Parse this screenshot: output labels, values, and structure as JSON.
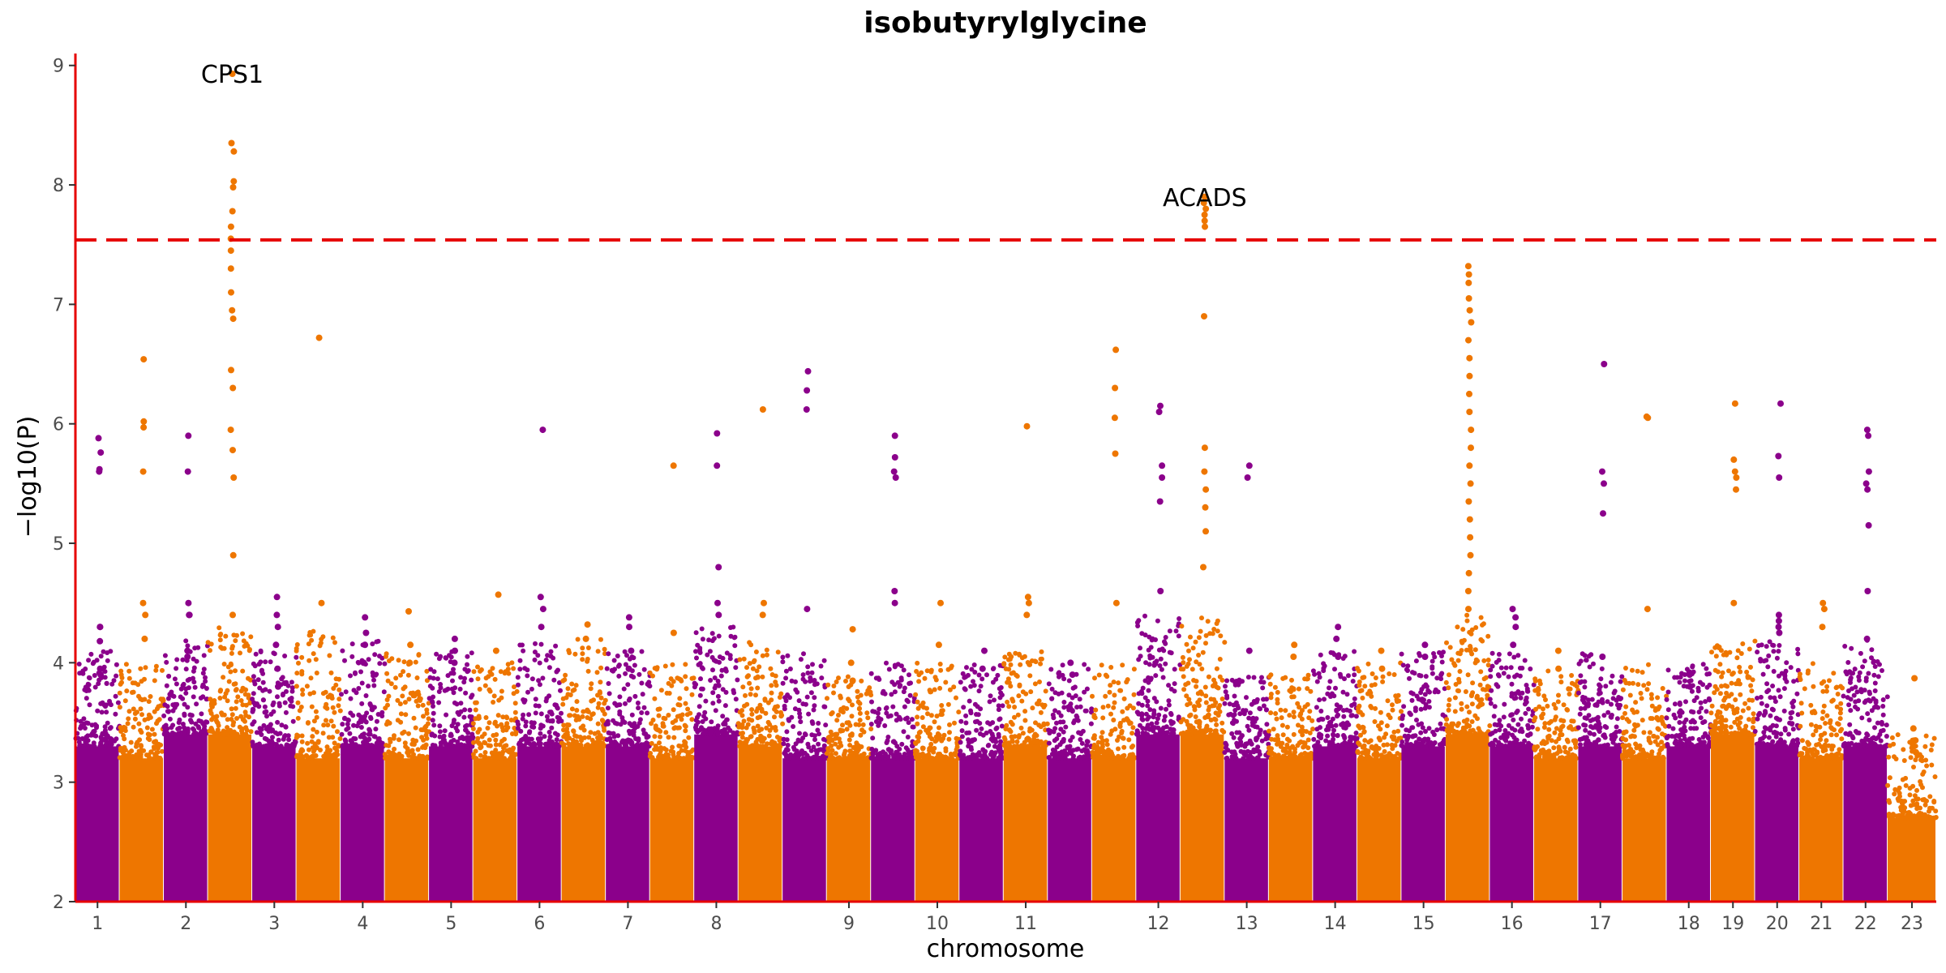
{
  "chart_data": {
    "type": "scatter",
    "subtype": "manhattan",
    "title": "isobutyrylglycine",
    "xlabel": "chromosome",
    "ylabel": "−log10(P)",
    "ylim": [
      2,
      9.1
    ],
    "y_ticks": [
      2,
      3,
      4,
      5,
      6,
      7,
      8,
      9
    ],
    "grid": false,
    "significance_threshold": 7.54,
    "colors": {
      "odd": "#8B008B",
      "even": "#EE7600",
      "axis": "#E60000",
      "threshold": "#E60000"
    },
    "chromosomes": [
      {
        "label": "1",
        "base": 3.3,
        "bg_max": 4.1,
        "hits": [
          5.76,
          5.62,
          4.3,
          3.95,
          5.6,
          5.88,
          4.3,
          4.18,
          3.9
        ]
      },
      {
        "label": "",
        "base": 3.2,
        "bg_max": 4.0,
        "hits": [
          6.54,
          6.02,
          5.97,
          5.6,
          4.5,
          4.4,
          4.2
        ]
      },
      {
        "label": "2",
        "base": 3.4,
        "bg_max": 4.2,
        "hits": [
          4.5,
          4.4,
          5.9,
          5.6,
          4.4,
          4.1,
          4.05
        ]
      },
      {
        "label": "",
        "base": 3.4,
        "bg_max": 4.3,
        "hits": [
          8.93,
          8.35,
          8.28,
          8.03,
          7.98,
          7.78,
          7.65,
          7.55,
          7.45,
          7.3,
          7.1,
          6.95,
          6.88,
          6.45,
          6.3,
          5.95,
          5.78,
          5.55,
          4.9,
          4.4
        ]
      },
      {
        "label": "3",
        "base": 3.3,
        "bg_max": 4.1,
        "hits": [
          4.55,
          4.4,
          4.15,
          3.95,
          4.3,
          3.8
        ]
      },
      {
        "label": "",
        "base": 3.2,
        "bg_max": 4.3,
        "hits": [
          6.72,
          4.5
        ]
      },
      {
        "label": "4",
        "base": 3.3,
        "bg_max": 4.2,
        "hits": [
          4.38,
          4.25,
          4.15,
          4.0
        ]
      },
      {
        "label": "",
        "base": 3.2,
        "bg_max": 4.1,
        "hits": [
          4.43,
          4.15,
          4.0
        ]
      },
      {
        "label": "5",
        "base": 3.3,
        "bg_max": 4.1,
        "hits": [
          4.2,
          4.1,
          4.0
        ]
      },
      {
        "label": "",
        "base": 3.2,
        "bg_max": 4.0,
        "hits": [
          4.57,
          4.1
        ]
      },
      {
        "label": "6",
        "base": 3.3,
        "bg_max": 4.2,
        "hits": [
          5.95,
          4.55,
          4.45,
          4.3
        ]
      },
      {
        "label": "",
        "base": 3.3,
        "bg_max": 4.2,
        "hits": [
          4.32,
          4.2
        ]
      },
      {
        "label": "7",
        "base": 3.3,
        "bg_max": 4.1,
        "hits": [
          4.38,
          4.3,
          4.1,
          3.95
        ]
      },
      {
        "label": "",
        "base": 3.2,
        "bg_max": 4.0,
        "hits": [
          5.65,
          4.25
        ]
      },
      {
        "label": "8",
        "base": 3.4,
        "bg_max": 4.3,
        "hits": [
          5.92,
          5.65,
          4.8,
          4.5,
          4.4
        ]
      },
      {
        "label": "",
        "base": 3.3,
        "bg_max": 4.2,
        "hits": [
          6.12,
          4.5,
          4.4
        ]
      },
      {
        "label": "",
        "base": 3.2,
        "bg_max": 4.1,
        "hits": [
          6.44,
          6.28,
          6.12,
          4.45
        ]
      },
      {
        "label": "9",
        "base": 3.2,
        "bg_max": 3.9,
        "hits": [
          4.28,
          4.0,
          3.85
        ]
      },
      {
        "label": "",
        "base": 3.2,
        "bg_max": 4.0,
        "hits": [
          5.9,
          5.72,
          5.6,
          5.55,
          4.6,
          4.5
        ]
      },
      {
        "label": "10",
        "base": 3.2,
        "bg_max": 4.0,
        "hits": [
          4.5,
          4.15
        ]
      },
      {
        "label": "",
        "base": 3.2,
        "bg_max": 4.0,
        "hits": [
          4.1,
          3.95
        ]
      },
      {
        "label": "11",
        "base": 3.3,
        "bg_max": 4.1,
        "hits": [
          5.98,
          4.55,
          4.5,
          4.4
        ]
      },
      {
        "label": "",
        "base": 3.2,
        "bg_max": 4.0,
        "hits": [
          4.0,
          3.9
        ]
      },
      {
        "label": "",
        "base": 3.2,
        "bg_max": 4.0,
        "hits": [
          6.62,
          6.3,
          6.05,
          5.75,
          4.5
        ]
      },
      {
        "label": "12",
        "base": 3.4,
        "bg_max": 4.4,
        "hits": [
          6.15,
          6.1,
          5.65,
          5.55,
          5.35,
          4.6
        ]
      },
      {
        "label": "",
        "base": 3.4,
        "bg_max": 4.4,
        "hits": [
          7.9,
          7.85,
          7.8,
          7.75,
          7.7,
          7.65,
          6.9,
          5.8,
          5.6,
          5.45,
          5.3,
          5.1,
          4.8
        ]
      },
      {
        "label": "13",
        "base": 3.2,
        "bg_max": 3.9,
        "hits": [
          5.65,
          5.55,
          4.1
        ]
      },
      {
        "label": "",
        "base": 3.2,
        "bg_max": 3.9,
        "hits": [
          4.15,
          4.05
        ]
      },
      {
        "label": "14",
        "base": 3.3,
        "bg_max": 4.1,
        "hits": [
          4.3,
          4.2,
          4.05
        ]
      },
      {
        "label": "",
        "base": 3.2,
        "bg_max": 4.0,
        "hits": [
          4.1,
          3.95
        ]
      },
      {
        "label": "15",
        "base": 3.3,
        "bg_max": 4.1,
        "hits": [
          4.15,
          4.05
        ]
      },
      {
        "label": "",
        "base": 3.4,
        "bg_max": 4.4,
        "hits": [
          7.32,
          7.25,
          7.18,
          7.05,
          6.95,
          6.85,
          6.7,
          6.55,
          6.4,
          6.25,
          6.1,
          5.95,
          5.8,
          5.65,
          5.5,
          5.35,
          5.2,
          5.05,
          4.9,
          4.75,
          4.6,
          4.45
        ]
      },
      {
        "label": "16",
        "base": 3.3,
        "bg_max": 4.1,
        "hits": [
          4.45,
          4.38,
          4.3,
          4.15
        ]
      },
      {
        "label": "",
        "base": 3.2,
        "bg_max": 4.0,
        "hits": [
          4.1,
          3.95
        ]
      },
      {
        "label": "17",
        "base": 3.3,
        "bg_max": 4.1,
        "hits": [
          6.5,
          5.6,
          5.5,
          5.25,
          4.05
        ]
      },
      {
        "label": "",
        "base": 3.2,
        "bg_max": 4.0,
        "hits": [
          6.06,
          6.05,
          4.45
        ]
      },
      {
        "label": "18",
        "base": 3.3,
        "bg_max": 4.0,
        "hits": [
          3.9,
          3.8
        ]
      },
      {
        "label": "19",
        "base": 3.4,
        "bg_max": 4.2,
        "hits": [
          6.17,
          5.7,
          5.6,
          5.55,
          5.45,
          4.5
        ]
      },
      {
        "label": "20",
        "base": 3.3,
        "bg_max": 4.2,
        "hits": [
          6.17,
          5.73,
          5.55,
          4.4,
          4.35,
          4.3,
          4.25
        ]
      },
      {
        "label": "21",
        "base": 3.2,
        "bg_max": 4.0,
        "hits": [
          4.5,
          4.45,
          4.3
        ]
      },
      {
        "label": "22",
        "base": 3.3,
        "bg_max": 4.2,
        "hits": [
          5.95,
          5.9,
          5.6,
          5.5,
          5.45,
          5.15,
          4.6,
          4.2
        ]
      },
      {
        "label": "23",
        "base": 2.7,
        "bg_max": 3.4,
        "hits": [
          3.87,
          3.45,
          3.35,
          3.3,
          3.25
        ]
      }
    ],
    "annotations": [
      {
        "text": "CPS1",
        "chrom_index": 3,
        "y": 8.93
      },
      {
        "text": "ACADS",
        "chrom_index": 25,
        "y": 7.9
      }
    ]
  }
}
